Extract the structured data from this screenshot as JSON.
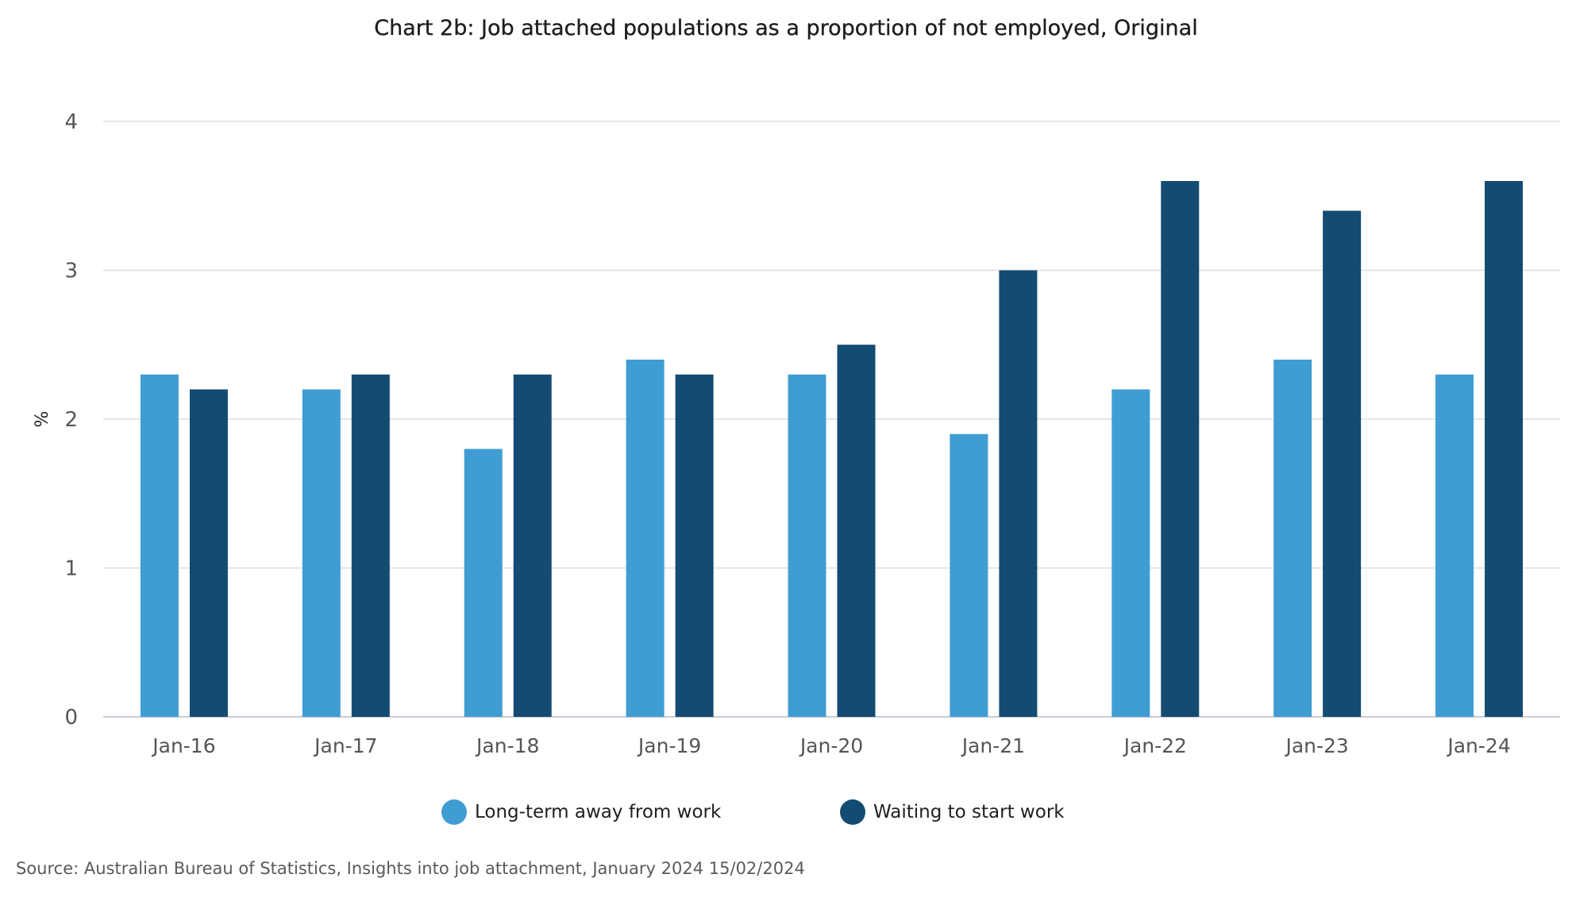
{
  "colors": {
    "long_term": "#409dd2",
    "waiting": "#144b72",
    "grid": "#dedede",
    "axis": "#c8ccd6",
    "tick_text": "#555555"
  },
  "legend": {
    "long_term_label": "Long-term away from work",
    "waiting_label": "Waiting to start work"
  },
  "source_text": "Source: Australian Bureau of Statistics, Insights into job attachment, January 2024 15/02/2024",
  "chart_data": {
    "type": "bar",
    "title": "Chart 2b: Job attached populations as a proportion of not employed, Original",
    "xlabel": "",
    "ylabel": "%",
    "ylim": [
      0,
      4
    ],
    "yticks": [
      "0",
      "1",
      "2",
      "3",
      "4"
    ],
    "grid": true,
    "legend_position": "bottom",
    "categories": [
      "Jan-16",
      "Jan-17",
      "Jan-18",
      "Jan-19",
      "Jan-20",
      "Jan-21",
      "Jan-22",
      "Jan-23",
      "Jan-24"
    ],
    "series": [
      {
        "name": "Long-term away from work",
        "values": [
          2.3,
          2.2,
          1.8,
          2.4,
          2.3,
          1.9,
          2.2,
          2.4,
          2.3
        ]
      },
      {
        "name": "Waiting to start work",
        "values": [
          2.2,
          2.3,
          2.3,
          2.3,
          2.5,
          3.0,
          3.6,
          3.4,
          3.6
        ]
      }
    ]
  }
}
